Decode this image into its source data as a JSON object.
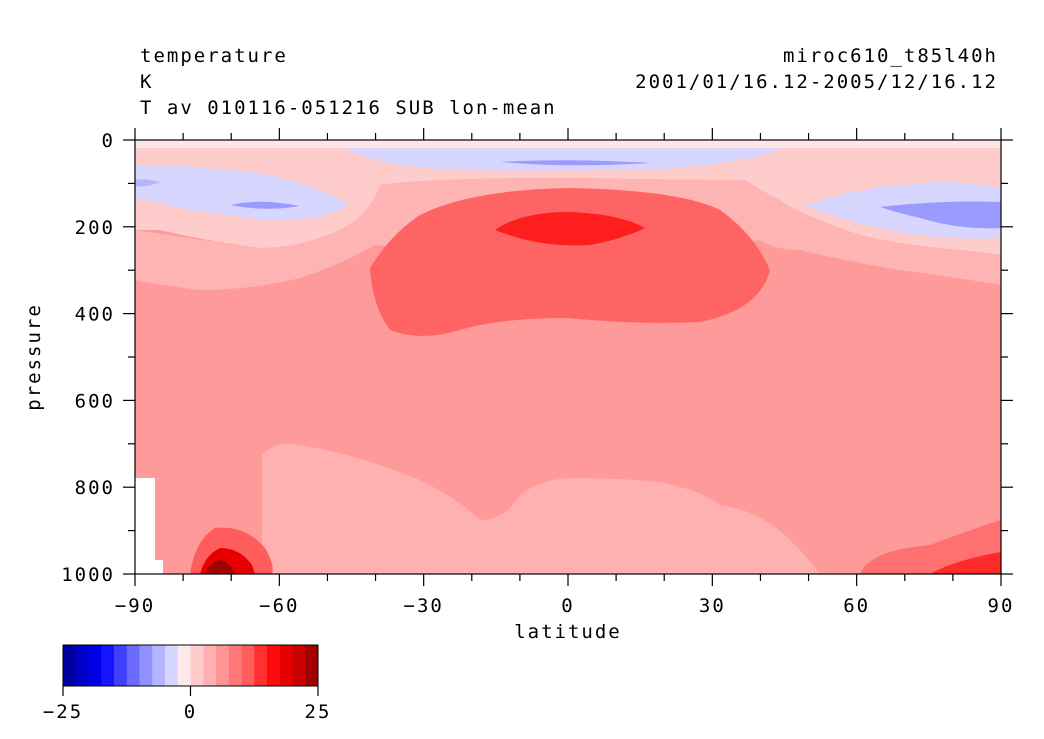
{
  "chart_data": {
    "type": "heatmap",
    "title_left": [
      "temperature",
      "K",
      "T av 010116-051216 SUB lon-mean"
    ],
    "title_right": [
      "miroc610_t85l40h",
      "2001/01/16.12-2005/12/16.12"
    ],
    "xlabel": "latitude",
    "ylabel": "pressure",
    "xlim": [
      -90,
      90
    ],
    "ylim": [
      1000,
      0
    ],
    "x_ticks": [
      "−90",
      "−60",
      "−30",
      "0",
      "30",
      "60",
      "90"
    ],
    "x_tick_values": [
      -90,
      -60,
      -30,
      0,
      30,
      60,
      90
    ],
    "y_ticks": [
      "0",
      "200",
      "400",
      "600",
      "800",
      "1000"
    ],
    "y_tick_values": [
      0,
      200,
      400,
      600,
      800,
      1000
    ],
    "colorbar": {
      "range": [
        -25,
        25
      ],
      "tick_labels": [
        "−25",
        "0",
        "25"
      ],
      "tick_values": [
        -25,
        0,
        25
      ],
      "colors": [
        "#0000a0",
        "#0000c8",
        "#0000e6",
        "#1414ff",
        "#4040ff",
        "#6a6aff",
        "#9090ff",
        "#b4b4ff",
        "#d6d6ff",
        "#ffe8e8",
        "#ffcccc",
        "#ffb0b0",
        "#ff9494",
        "#ff7878",
        "#ff5c5c",
        "#ff3030",
        "#ff0a0a",
        "#e60000",
        "#c80000",
        "#a00000"
      ]
    },
    "missing_color": "#ffffff",
    "field": {
      "description": "temperature difference (K), zonal mean, pressure vs latitude",
      "regions": [
        {
          "level": "light-pink",
          "note": "lower troposphere around equator and mid-latitudes"
        },
        {
          "level": "pink",
          "note": "bulk of troposphere"
        },
        {
          "level": "red",
          "note": "upper tropical troposphere 100-450 hPa"
        },
        {
          "level": "bright-red",
          "note": "core near 200 hPa at equator"
        },
        {
          "level": "light-blue",
          "note": "stratosphere near 0-50 hPa and polar 100-250 hPa"
        },
        {
          "level": "dark-red",
          "note": "near-surface at 75S and north pole"
        }
      ]
    }
  }
}
